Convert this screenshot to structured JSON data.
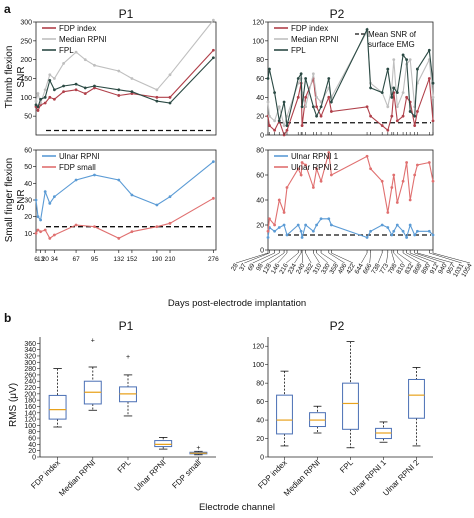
{
  "panel_labels": {
    "a": "a",
    "b": "b"
  },
  "titles": {
    "p1_top": "P1",
    "p2_top": "P2",
    "p1_bottom": "P1",
    "p2_bottom": "P2"
  },
  "labels": {
    "thumb_y": [
      "Thumb flexion",
      "SNR"
    ],
    "small_y": [
      "Small finger flexion",
      "SNR"
    ],
    "days_x": "Days post-electrode implantation",
    "rms_y": "RMS (μV)",
    "channel_x": "Electrode channel",
    "mean_snr_note": [
      "Mean SNR of",
      "surface EMG"
    ]
  },
  "colors": {
    "fdp_index": "#b0404a",
    "median_rpni": "#bfbfbf",
    "fpl": "#2b4a44",
    "ulnar_rpni": "#5b9bd5",
    "fdp_small": "#e07070",
    "box": "#4a6fb5",
    "median_line": "#e8a21d",
    "outlier": "#c0392b"
  },
  "chart_data": [
    {
      "id": "p1-thumb",
      "type": "line",
      "title": "P1",
      "ylabel": "Thumb flexion SNR",
      "xlim": [
        6,
        280
      ],
      "ylim": [
        0,
        300
      ],
      "mean_surface_emg": 12,
      "series": [
        {
          "name": "FDP index",
          "x": [
            6,
            9,
            13,
            20,
            27,
            34,
            48,
            67,
            81,
            95,
            132,
            152,
            190,
            210,
            276
          ],
          "y": [
            75,
            65,
            80,
            85,
            100,
            95,
            115,
            120,
            110,
            125,
            105,
            110,
            100,
            100,
            225
          ]
        },
        {
          "name": "Median RPNI",
          "x": [
            6,
            9,
            13,
            20,
            27,
            34,
            48,
            67,
            81,
            95,
            132,
            152,
            190,
            210,
            276
          ],
          "y": [
            90,
            110,
            85,
            120,
            160,
            150,
            190,
            220,
            200,
            185,
            170,
            150,
            120,
            160,
            305
          ]
        },
        {
          "name": "FPL",
          "x": [
            6,
            9,
            13,
            20,
            27,
            34,
            48,
            67,
            81,
            95,
            132,
            152,
            190,
            210,
            276
          ],
          "y": [
            80,
            75,
            95,
            100,
            145,
            120,
            130,
            135,
            125,
            130,
            120,
            115,
            90,
            85,
            205
          ]
        }
      ]
    },
    {
      "id": "p1-small",
      "type": "line",
      "title": "",
      "ylabel": "Small finger flexion SNR",
      "xlim": [
        6,
        280
      ],
      "ylim": [
        0,
        60
      ],
      "mean_surface_emg": 14,
      "x_ticks": [
        6,
        13,
        20,
        34,
        67,
        95,
        132,
        152,
        190,
        210,
        276
      ],
      "series": [
        {
          "name": "Ulnar RPNI",
          "x": [
            6,
            9,
            13,
            20,
            27,
            34,
            67,
            95,
            132,
            152,
            190,
            210,
            276
          ],
          "y": [
            30,
            20,
            18,
            35,
            28,
            32,
            42,
            45,
            42,
            33,
            27,
            32,
            53
          ]
        },
        {
          "name": "FDP small",
          "x": [
            6,
            9,
            13,
            20,
            27,
            34,
            67,
            95,
            132,
            152,
            190,
            210,
            276
          ],
          "y": [
            10,
            12,
            11,
            12,
            7,
            9,
            15,
            14,
            7,
            11,
            14,
            16,
            31
          ]
        }
      ]
    },
    {
      "id": "p2-thumb",
      "type": "line",
      "title": "P2",
      "ylabel": "",
      "xlim": [
        28,
        1054
      ],
      "ylim": [
        0,
        120
      ],
      "mean_surface_emg": 13,
      "series": [
        {
          "name": "FDP index",
          "x": [
            28,
            37,
            69,
            98,
            128,
            146,
            216,
            234,
            240,
            262,
            310,
            330,
            358,
            406,
            422,
            644,
            666,
            738,
            773,
            798,
            810,
            832,
            868,
            890,
            912,
            940,
            957,
            1031,
            1054
          ],
          "y": [
            20,
            10,
            5,
            15,
            0,
            5,
            40,
            55,
            10,
            40,
            60,
            30,
            20,
            40,
            25,
            30,
            20,
            10,
            5,
            20,
            45,
            15,
            20,
            40,
            35,
            10,
            25,
            60,
            15
          ]
        },
        {
          "name": "Median RPNI",
          "x": [
            28,
            37,
            69,
            98,
            128,
            146,
            216,
            234,
            240,
            262,
            310,
            330,
            358,
            406,
            422,
            644,
            666,
            738,
            773,
            798,
            810,
            832,
            868,
            890,
            912,
            940,
            957,
            1031,
            1054
          ],
          "y": [
            35,
            20,
            15,
            30,
            10,
            20,
            55,
            60,
            45,
            30,
            65,
            40,
            35,
            50,
            40,
            110,
            55,
            45,
            30,
            50,
            80,
            30,
            45,
            75,
            80,
            30,
            55,
            80,
            40
          ]
        },
        {
          "name": "FPL",
          "x": [
            28,
            37,
            69,
            98,
            128,
            146,
            216,
            234,
            240,
            262,
            310,
            330,
            358,
            406,
            422,
            644,
            666,
            738,
            773,
            798,
            810,
            832,
            868,
            890,
            912,
            940,
            957,
            1031,
            1054
          ],
          "y": [
            60,
            70,
            45,
            15,
            35,
            10,
            60,
            65,
            30,
            60,
            30,
            20,
            30,
            60,
            35,
            112,
            50,
            45,
            70,
            40,
            50,
            45,
            85,
            80,
            25,
            20,
            70,
            90,
            55
          ]
        }
      ]
    },
    {
      "id": "p2-small",
      "type": "line",
      "title": "",
      "ylabel": "",
      "xlim": [
        28,
        1054
      ],
      "ylim": [
        0,
        80
      ],
      "mean_surface_emg": 12,
      "x_ticks": [
        28,
        37,
        69,
        98,
        128,
        146,
        216,
        234,
        240,
        262,
        310,
        330,
        358,
        406,
        422,
        644,
        666,
        738,
        773,
        798,
        810,
        832,
        868,
        890,
        912,
        940,
        957,
        1031,
        1054
      ],
      "series": [
        {
          "name": "Ulnar RPNI 1",
          "x": [
            28,
            37,
            69,
            98,
            128,
            146,
            216,
            234,
            240,
            262,
            310,
            330,
            358,
            406,
            422,
            644,
            666,
            738,
            773,
            798,
            810,
            832,
            868,
            890,
            912,
            940,
            957,
            1031,
            1054
          ],
          "y": [
            10,
            18,
            15,
            18,
            20,
            12,
            20,
            15,
            10,
            20,
            15,
            20,
            25,
            25,
            20,
            10,
            15,
            20,
            18,
            12,
            15,
            20,
            15,
            10,
            20,
            12,
            15,
            15,
            12
          ]
        },
        {
          "name": "Ulnar RPNI 2",
          "x": [
            28,
            37,
            69,
            98,
            128,
            146,
            216,
            234,
            240,
            262,
            310,
            330,
            358,
            406,
            422,
            644,
            666,
            738,
            773,
            798,
            810,
            832,
            868,
            890,
            912,
            940,
            957,
            1031,
            1054
          ],
          "y": [
            15,
            25,
            20,
            40,
            30,
            50,
            65,
            60,
            70,
            68,
            50,
            65,
            55,
            78,
            60,
            75,
            65,
            55,
            30,
            50,
            60,
            38,
            55,
            70,
            40,
            60,
            68,
            70,
            55
          ]
        }
      ]
    },
    {
      "id": "p1-rms",
      "type": "box",
      "title": "P1",
      "ylabel": "RMS (μV)",
      "xlabel": "Electrode channel",
      "ylim": [
        0,
        380
      ],
      "y_ticks": [
        0,
        20,
        40,
        60,
        80,
        100,
        120,
        140,
        160,
        180,
        200,
        220,
        240,
        260,
        280,
        300,
        320,
        340,
        360
      ],
      "categories": [
        "FDP index",
        "Median RPNI",
        "FPL",
        "Ulnar RPNI",
        "FDP small"
      ],
      "boxes": [
        {
          "min": 95,
          "q1": 120,
          "median": 150,
          "q3": 195,
          "max": 280,
          "outliers": []
        },
        {
          "min": 148,
          "q1": 168,
          "median": 205,
          "q3": 240,
          "max": 285,
          "outliers": [
            370
          ]
        },
        {
          "min": 130,
          "q1": 175,
          "median": 200,
          "q3": 222,
          "max": 260,
          "outliers": [
            318
          ]
        },
        {
          "min": 25,
          "q1": 33,
          "median": 40,
          "q3": 52,
          "max": 62,
          "outliers": []
        },
        {
          "min": 7,
          "q1": 10,
          "median": 12,
          "q3": 15,
          "max": 18,
          "outliers": [
            30
          ]
        }
      ]
    },
    {
      "id": "p2-rms",
      "type": "box",
      "title": "P2",
      "ylabel": "",
      "xlabel": "Electrode channel",
      "ylim": [
        0,
        130
      ],
      "y_ticks": [
        0,
        20,
        40,
        60,
        80,
        100,
        120
      ],
      "categories": [
        "FDP index",
        "Median RPNI",
        "FPL",
        "Ulnar RPNI 1",
        "Ulnar RPNI 2"
      ],
      "boxes": [
        {
          "min": 12,
          "q1": 25,
          "median": 40,
          "q3": 67,
          "max": 93,
          "outliers": []
        },
        {
          "min": 26,
          "q1": 33,
          "median": 40,
          "q3": 48,
          "max": 55,
          "outliers": []
        },
        {
          "min": 10,
          "q1": 30,
          "median": 58,
          "q3": 80,
          "max": 125,
          "outliers": []
        },
        {
          "min": 16,
          "q1": 20,
          "median": 26,
          "q3": 31,
          "max": 38,
          "outliers": []
        },
        {
          "min": 12,
          "q1": 42,
          "median": 67,
          "q3": 84,
          "max": 97,
          "outliers": []
        }
      ]
    }
  ]
}
